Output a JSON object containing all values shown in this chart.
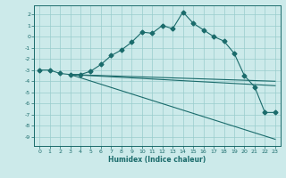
{
  "xlabel": "Humidex (Indice chaleur)",
  "background_color": "#cceaea",
  "grid_color": "#99cccc",
  "line_color": "#1a6b6b",
  "xlim": [
    -0.5,
    23.5
  ],
  "ylim": [
    -9.8,
    2.8
  ],
  "yticks": [
    2,
    1,
    0,
    -1,
    -2,
    -3,
    -4,
    -5,
    -6,
    -7,
    -8,
    -9
  ],
  "xticks": [
    0,
    1,
    2,
    3,
    4,
    5,
    6,
    7,
    8,
    9,
    10,
    11,
    12,
    13,
    14,
    15,
    16,
    17,
    18,
    19,
    20,
    21,
    22,
    23
  ],
  "series1_x": [
    0,
    1,
    2,
    3,
    4,
    5,
    6,
    7,
    8,
    9,
    10,
    11,
    12,
    13,
    14,
    15,
    16,
    17,
    18,
    19,
    20,
    21,
    22,
    23
  ],
  "series1_y": [
    -3.0,
    -3.0,
    -3.3,
    -3.4,
    -3.4,
    -3.1,
    -2.5,
    -1.7,
    -1.2,
    -0.5,
    0.4,
    0.3,
    1.0,
    0.7,
    2.2,
    1.2,
    0.6,
    0.0,
    -0.4,
    -1.5,
    -3.5,
    -4.5,
    -6.8,
    -6.8
  ],
  "series2_x": [
    3,
    23
  ],
  "series2_y": [
    -3.4,
    -4.0
  ],
  "series3_x": [
    3,
    23
  ],
  "series3_y": [
    -3.4,
    -4.4
  ],
  "series4_x": [
    3,
    23
  ],
  "series4_y": [
    -3.4,
    -9.2
  ]
}
